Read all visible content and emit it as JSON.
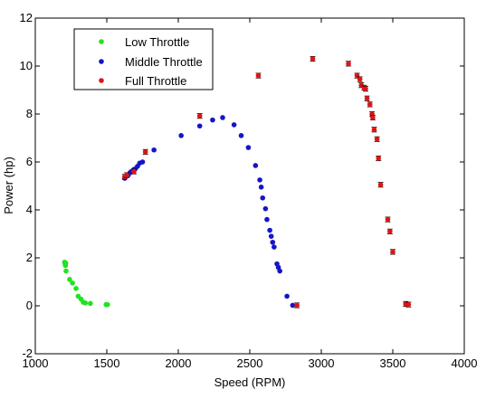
{
  "chart_data": {
    "type": "scatter",
    "title": "",
    "xlabel": "Speed (RPM)",
    "ylabel": "Power (hp)",
    "xlim": [
      1000,
      4000
    ],
    "ylim": [
      -2,
      12
    ],
    "xticks": [
      1000,
      1500,
      2000,
      2500,
      3000,
      3500,
      4000
    ],
    "yticks": [
      -2,
      0,
      2,
      4,
      6,
      8,
      10,
      12
    ],
    "grid": false,
    "legend_position": "top-left",
    "series": [
      {
        "name": "Low Throttle",
        "color": "#22e222",
        "error_bars": false,
        "points": [
          [
            1205,
            1.82
          ],
          [
            1208,
            1.75
          ],
          [
            1211,
            1.68
          ],
          [
            1213,
            1.78
          ],
          [
            1215,
            1.45
          ],
          [
            1240,
            1.1
          ],
          [
            1260,
            0.95
          ],
          [
            1285,
            0.72
          ],
          [
            1300,
            0.4
          ],
          [
            1320,
            0.28
          ],
          [
            1335,
            0.15
          ],
          [
            1350,
            0.12
          ],
          [
            1385,
            0.1
          ],
          [
            1495,
            0.05
          ],
          [
            1505,
            0.05
          ]
        ]
      },
      {
        "name": "Middle Throttle",
        "color": "#1414c8",
        "error_bars": false,
        "points": [
          [
            1625,
            5.32
          ],
          [
            1640,
            5.42
          ],
          [
            1650,
            5.45
          ],
          [
            1662,
            5.55
          ],
          [
            1672,
            5.6
          ],
          [
            1688,
            5.68
          ],
          [
            1700,
            5.72
          ],
          [
            1715,
            5.82
          ],
          [
            1730,
            5.95
          ],
          [
            1750,
            6.0
          ],
          [
            1830,
            6.5
          ],
          [
            2020,
            7.1
          ],
          [
            2150,
            7.5
          ],
          [
            2240,
            7.75
          ],
          [
            2310,
            7.85
          ],
          [
            2390,
            7.55
          ],
          [
            2440,
            7.1
          ],
          [
            2490,
            6.6
          ],
          [
            2540,
            5.85
          ],
          [
            2570,
            5.25
          ],
          [
            2580,
            4.95
          ],
          [
            2590,
            4.5
          ],
          [
            2610,
            4.05
          ],
          [
            2620,
            3.6
          ],
          [
            2640,
            3.15
          ],
          [
            2650,
            2.9
          ],
          [
            2660,
            2.65
          ],
          [
            2670,
            2.45
          ],
          [
            2690,
            1.75
          ],
          [
            2700,
            1.6
          ],
          [
            2710,
            1.45
          ],
          [
            2760,
            0.4
          ],
          [
            2800,
            0.02
          ]
        ]
      },
      {
        "name": "Full Throttle",
        "color": "#e01414",
        "error_bars": true,
        "err": 0.1,
        "points": [
          [
            1625,
            5.38
          ],
          [
            1640,
            5.45
          ],
          [
            1690,
            5.6
          ],
          [
            1770,
            6.42
          ],
          [
            2150,
            7.92
          ],
          [
            2560,
            9.6
          ],
          [
            2940,
            10.3
          ],
          [
            3190,
            10.1
          ],
          [
            3250,
            9.6
          ],
          [
            3270,
            9.45
          ],
          [
            3280,
            9.2
          ],
          [
            3300,
            9.1
          ],
          [
            3310,
            9.05
          ],
          [
            3320,
            8.65
          ],
          [
            3340,
            8.4
          ],
          [
            3355,
            8.0
          ],
          [
            3360,
            7.85
          ],
          [
            3370,
            7.35
          ],
          [
            3390,
            6.95
          ],
          [
            3400,
            6.15
          ],
          [
            3415,
            5.05
          ],
          [
            3465,
            3.6
          ],
          [
            3480,
            3.1
          ],
          [
            3500,
            2.25
          ],
          [
            2830,
            0.02
          ],
          [
            3590,
            0.08
          ],
          [
            3610,
            0.05
          ]
        ]
      }
    ]
  }
}
